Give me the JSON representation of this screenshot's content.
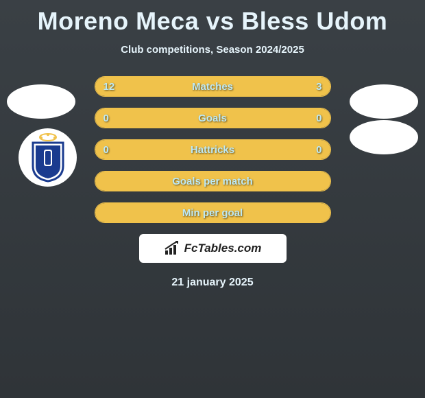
{
  "header": {
    "title": "Moreno Meca vs Bless Udom",
    "subtitle": "Club competitions, Season 2024/2025"
  },
  "rows": [
    {
      "label": "Matches",
      "left": "12",
      "right": "3",
      "left_fill_pct": 78,
      "right_fill_pct": 22,
      "show_vals": true
    },
    {
      "label": "Goals",
      "left": "0",
      "right": "0",
      "left_fill_pct": 100,
      "right_fill_pct": 0,
      "show_vals": true,
      "full": true
    },
    {
      "label": "Hattricks",
      "left": "0",
      "right": "0",
      "left_fill_pct": 100,
      "right_fill_pct": 0,
      "show_vals": true,
      "full": true
    },
    {
      "label": "Goals per match",
      "left": "",
      "right": "",
      "left_fill_pct": 100,
      "right_fill_pct": 0,
      "show_vals": false,
      "full": true
    },
    {
      "label": "Min per goal",
      "left": "",
      "right": "",
      "left_fill_pct": 100,
      "right_fill_pct": 0,
      "show_vals": false,
      "full": true
    }
  ],
  "branding": {
    "text": "FcTables.com"
  },
  "date": "21 january 2025",
  "colors": {
    "accent": "#f0c24b",
    "text_light": "#bee9f4",
    "heading": "#e6f4fb",
    "bg_top": "#3a4045",
    "bg_bottom": "#2f3438",
    "club_primary": "#1a3b8f",
    "club_accent": "#f0c24b"
  }
}
